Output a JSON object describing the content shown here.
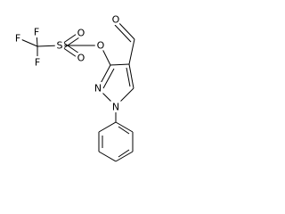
{
  "atoms": [
    {
      "label": "F"
    },
    {
      "label": "F"
    },
    {
      "label": "F"
    },
    {
      "label": "S"
    },
    {
      "label": "O"
    },
    {
      "label": "O"
    },
    {
      "label": "O"
    },
    {
      "label": "N"
    },
    {
      "label": "N"
    },
    {
      "label": "O"
    }
  ]
}
